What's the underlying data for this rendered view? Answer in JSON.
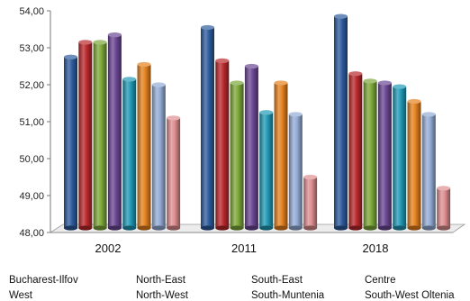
{
  "chart_data": {
    "type": "bar",
    "title": "",
    "xlabel": "",
    "ylabel": "",
    "ylim": [
      48,
      54
    ],
    "yticks": [
      "48,00",
      "49,00",
      "50,00",
      "51,00",
      "52,00",
      "53,00",
      "54,00"
    ],
    "categories": [
      "2002",
      "2011",
      "2018"
    ],
    "grid": false,
    "legend_position": "bottom",
    "series": [
      {
        "name": "Bucharest-Ilfov",
        "color": "#2E5C9E",
        "values": [
          52.75,
          53.55,
          53.85
        ]
      },
      {
        "name": "North-East",
        "color": "#B9282C",
        "values": [
          53.15,
          52.65,
          52.3
        ]
      },
      {
        "name": "South-East",
        "color": "#7DA83A",
        "values": [
          53.15,
          52.05,
          52.1
        ]
      },
      {
        "name": "Centre",
        "color": "#6B4793",
        "values": [
          53.35,
          52.5,
          52.05
        ]
      },
      {
        "name": "West",
        "color": "#2199B5",
        "values": [
          52.15,
          51.25,
          51.95
        ]
      },
      {
        "name": "North-West",
        "color": "#E4811E",
        "values": [
          52.55,
          52.05,
          51.55
        ]
      },
      {
        "name": "South-Muntenia",
        "color": "#94ACD6",
        "values": [
          52.0,
          51.2,
          51.2
        ]
      },
      {
        "name": "South-West Oltenia",
        "color": "#DE8E90",
        "values": [
          51.1,
          49.5,
          49.2
        ]
      }
    ]
  }
}
